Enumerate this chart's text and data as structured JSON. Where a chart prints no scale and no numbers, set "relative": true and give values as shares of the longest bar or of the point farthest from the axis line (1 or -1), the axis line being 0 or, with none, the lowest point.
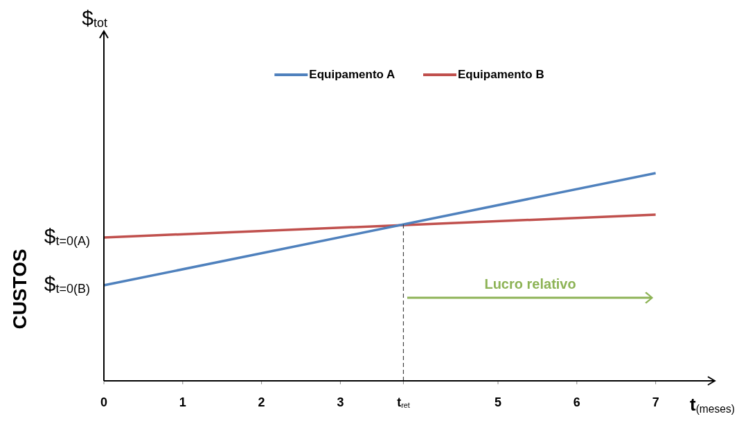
{
  "chart_data": {
    "type": "line",
    "relative": true,
    "ylabel": "CUSTOS",
    "xlabel": "t$_{(meses)}$",
    "legend": "top",
    "x": [
      0,
      7
    ],
    "xlim": [
      0,
      7.75
    ],
    "xticks": [
      0,
      1,
      2,
      3,
      {
        "value": 3.8,
        "label": "t$_{ret}$"
      },
      5,
      6,
      7
    ],
    "series": [
      {
        "name": "Equipamento A",
        "color": "#4f81bd",
        "values": [
          0.46,
          1.0
        ]
      },
      {
        "name": "Equipamento B",
        "color": "#c0504d",
        "values": [
          0.69,
          0.8
        ]
      }
    ],
    "ref_lines": [
      {
        "axis": "x",
        "value": 3.8,
        "color": "#404040",
        "line_style": "dashed"
      }
    ],
    "annotations": [
      "$$_{tot}$",
      {
        "text": "$$_{t=0(A)}$",
        "x": 0,
        "y": 0.69
      },
      {
        "text": "$$_{t=0(B)}$",
        "x": 0,
        "y": 0.46
      },
      "Lucro relativo"
    ],
    "marker": "none",
    "grid": false
  }
}
